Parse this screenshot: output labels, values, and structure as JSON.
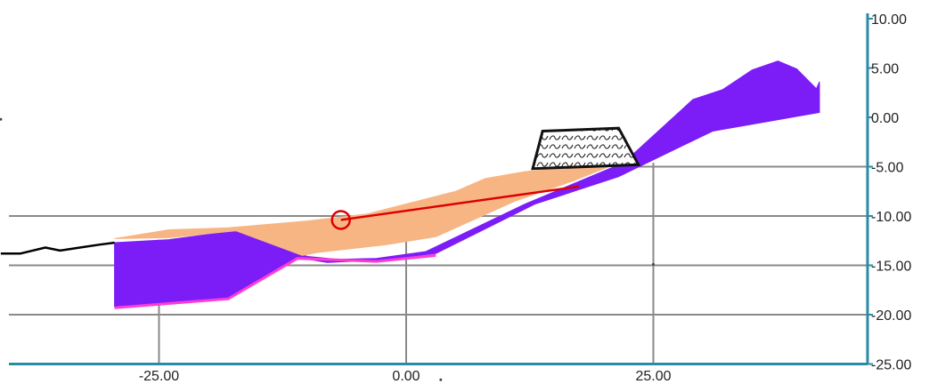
{
  "colors": {
    "background": "#ffffff",
    "axis": "#2b8aa8",
    "grid": "#8a8a8a",
    "bedrock": "#7c1cf7",
    "bedrock_edge": "#ff3cd2",
    "sediment": "#f8b584",
    "ground_line": "#000000",
    "slip_line": "#dd0000",
    "slip_circle": "#dd0000"
  },
  "chart_data": {
    "type": "cross-section",
    "x_ticks": [
      "-25.00",
      "0.00",
      "25.00"
    ],
    "x_tick_values": [
      -25,
      0,
      25
    ],
    "y_ticks": [
      "10.00",
      "5.00",
      "0.00",
      "-5.00",
      "-10.00",
      "-15.00",
      "-20.00",
      "-25.00"
    ],
    "y_tick_values": [
      10,
      5,
      0,
      -5,
      -10,
      -15,
      -20,
      -25
    ],
    "xlim": [
      -41,
      41
    ],
    "ylim": [
      -25,
      10
    ],
    "grid": true,
    "layers": [
      {
        "name_icon": "bedrock-layer",
        "fill": "bedrock",
        "points": [
          [
            -29.5,
            -12.7
          ],
          [
            -24,
            -12.4
          ],
          [
            -17.2,
            -11.5
          ],
          [
            -10,
            -14.1
          ],
          [
            -7,
            -14.4
          ],
          [
            -3,
            -14.3
          ],
          [
            2,
            -13.6
          ],
          [
            12,
            -8.8
          ],
          [
            22,
            -4.6
          ],
          [
            29,
            1.8
          ],
          [
            32,
            2.8
          ],
          [
            35,
            4.8
          ],
          [
            37.6,
            5.7
          ],
          [
            39.5,
            4.9
          ],
          [
            41.5,
            2.9
          ],
          [
            41.8,
            3.6
          ],
          [
            41.8,
            0.5
          ],
          [
            31,
            -1.4
          ],
          [
            21.5,
            -6
          ],
          [
            13,
            -8.8
          ],
          [
            3,
            -13.8
          ],
          [
            -3,
            -14.5
          ],
          [
            -8,
            -14.7
          ],
          [
            -11,
            -14.2
          ],
          [
            -18,
            -18.3
          ],
          [
            -29.5,
            -19.2
          ]
        ]
      },
      {
        "name_icon": "sediment-layer",
        "fill": "sediment",
        "points": [
          [
            -29.5,
            -12.3
          ],
          [
            -24,
            -11.4
          ],
          [
            -18,
            -11.2
          ],
          [
            -10,
            -10.5
          ],
          [
            -4,
            -9.8
          ],
          [
            5,
            -7.5
          ],
          [
            8,
            -6.2
          ],
          [
            12,
            -5.5
          ],
          [
            20,
            -4.7
          ],
          [
            21,
            -4.8
          ],
          [
            17,
            -6.4
          ],
          [
            11,
            -8.5
          ],
          [
            3,
            -12.1
          ],
          [
            -2,
            -12.9
          ],
          [
            -9,
            -13.7
          ],
          [
            -10.5,
            -14
          ],
          [
            -17.2,
            -11.5
          ],
          [
            -24,
            -12.2
          ]
        ]
      },
      {
        "name_icon": "retaining-block",
        "fill": "hatched",
        "points": [
          [
            13.8,
            -1.4
          ],
          [
            21.5,
            -1.1
          ],
          [
            23.5,
            -4.8
          ],
          [
            12.8,
            -5.2
          ]
        ]
      }
    ],
    "ground_profile": [
      [
        -41,
        -13.8
      ],
      [
        -39,
        -13.8
      ],
      [
        -36.5,
        -13.2
      ],
      [
        -35,
        -13.5
      ],
      [
        -33,
        -13.2
      ],
      [
        -31,
        -12.9
      ],
      [
        -29.5,
        -12.7
      ]
    ],
    "bedrock_base_edge": [
      [
        -29.5,
        -19.3
      ],
      [
        -18,
        -18.4
      ],
      [
        -11,
        -14.3
      ],
      [
        -3,
        -14.6
      ],
      [
        3,
        -14
      ]
    ],
    "slip_surface": {
      "circle_center": [
        -6.6,
        -10.4
      ],
      "line_end": [
        17.5,
        -7.0
      ]
    },
    "stray_marks": [
      [
        -41,
        -0.2
      ],
      [
        3.5,
        -26.6
      ],
      [
        25,
        -14.9
      ]
    ]
  }
}
